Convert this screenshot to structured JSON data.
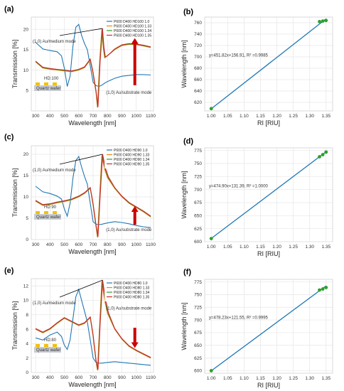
{
  "colors": {
    "series": [
      "#1f77b4",
      "#ff7f0e",
      "#2ca02c",
      "#d62728"
    ],
    "fit_line": "#1f77b4",
    "fit_points": "#2ca02c",
    "arrow": "#cc0000",
    "grid": "#e6e6e6"
  },
  "panels": [
    {
      "label": "(a)",
      "type": "spectra",
      "chart_data": {
        "type": "line",
        "xlabel": "Wavelength [nm]",
        "ylabel": "Transmission [%]",
        "xlim": [
          270,
          1120
        ],
        "ylim": [
          0,
          23
        ],
        "xticks": [
          300,
          400,
          500,
          600,
          700,
          800,
          900,
          1000,
          1100
        ],
        "yticks": [
          5,
          10,
          15,
          20
        ],
        "series": [
          {
            "name": "P600 D400 HD100 1.0",
            "x": [
              300,
              350,
              400,
              450,
              480,
              500,
              520,
              540,
              560,
              580,
              600,
              620,
              640,
              660,
              680,
              700,
              720,
              740,
              760,
              780,
              800,
              850,
              900,
              950,
              1000,
              1050,
              1100
            ],
            "y": [
              16.8,
              15.2,
              14.8,
              14.5,
              13.5,
              10.5,
              6.0,
              8.5,
              16.0,
              20.5,
              21.2,
              18.5,
              16.5,
              15.0,
              11.0,
              7.0,
              6.2,
              6.0,
              6.3,
              6.8,
              7.2,
              8.0,
              8.5,
              8.7,
              8.9,
              8.9,
              8.8
            ]
          },
          {
            "name": "P600 D400 HD100 1.33",
            "x": [
              300,
              350,
              400,
              450,
              500,
              550,
              600,
              640,
              680,
              700,
              720,
              730,
              745,
              760,
              770,
              780,
              800,
              850,
              900,
              950,
              1000,
              1050,
              1100
            ],
            "y": [
              12.0,
              10.5,
              10.2,
              10.0,
              9.8,
              9.6,
              10.0,
              10.6,
              12.5,
              9.0,
              4.5,
              0.8,
              12.0,
              19.8,
              15.5,
              13.0,
              13.5,
              15.0,
              16.0,
              16.3,
              16.2,
              15.9,
              15.5
            ]
          },
          {
            "name": "P600 D400 HD100 1.34",
            "x": [
              300,
              350,
              400,
              450,
              500,
              550,
              600,
              640,
              680,
              700,
              720,
              732,
              747,
              762,
              772,
              782,
              802,
              850,
              900,
              950,
              1000,
              1050,
              1100
            ],
            "y": [
              12.1,
              10.6,
              10.3,
              10.1,
              9.9,
              9.7,
              10.1,
              10.7,
              12.6,
              9.2,
              4.7,
              0.9,
              12.1,
              20.0,
              15.6,
              13.1,
              13.6,
              15.1,
              16.1,
              16.4,
              16.3,
              16.0,
              15.6
            ]
          },
          {
            "name": "P600 D400 HD100 1.35",
            "x": [
              300,
              350,
              400,
              450,
              500,
              550,
              600,
              640,
              680,
              700,
              720,
              734,
              749,
              765,
              775,
              785,
              805,
              850,
              900,
              950,
              1000,
              1050,
              1100
            ],
            "y": [
              12.2,
              10.7,
              10.4,
              10.2,
              10.0,
              9.8,
              10.2,
              10.8,
              12.7,
              9.4,
              4.9,
              1.0,
              12.2,
              20.2,
              15.7,
              13.2,
              13.7,
              15.2,
              16.2,
              16.5,
              16.4,
              16.1,
              15.7
            ]
          }
        ]
      },
      "annotations": {
        "upper": "(1,0) Au/medium mode",
        "lower": "(1,0) Au/substrate mode"
      },
      "inset": {
        "height_label": "HD:100",
        "wafer_label": "Quartz wafer"
      }
    },
    {
      "label": "(b)",
      "type": "fit",
      "chart_data": {
        "type": "scatter",
        "xlabel": "RI [RIU]",
        "ylabel": "Wavelength [nm]",
        "xlim": [
          0.98,
          1.37
        ],
        "ylim": [
          605,
          770
        ],
        "xticks": [
          1.0,
          1.05,
          1.1,
          1.15,
          1.2,
          1.25,
          1.3,
          1.35
        ],
        "yticks": [
          620,
          640,
          660,
          680,
          700,
          720,
          740,
          760
        ],
        "x": [
          1.0,
          1.33,
          1.34,
          1.35
        ],
        "y": [
          609,
          762,
          763,
          764
        ],
        "fit": {
          "slope": 451.82,
          "intercept": 156.91
        }
      },
      "equation": "y=451.82x+156.91, R² =0.9985"
    },
    {
      "label": "(c)",
      "type": "spectra",
      "chart_data": {
        "type": "line",
        "xlabel": "Wavelength [nm]",
        "ylabel": "Transmission [%]",
        "xlim": [
          270,
          1120
        ],
        "ylim": [
          0,
          22
        ],
        "xticks": [
          300,
          400,
          500,
          600,
          700,
          800,
          900,
          1000,
          1100
        ],
        "yticks": [
          0,
          5,
          10,
          15,
          20
        ],
        "series": [
          {
            "name": "P600 D400 HD90 1.0",
            "x": [
              300,
              350,
              400,
              450,
              480,
              500,
              520,
              540,
              560,
              580,
              600,
              620,
              640,
              660,
              680,
              700,
              720,
              740,
              760,
              800,
              850,
              900,
              950,
              1000,
              1050,
              1100
            ],
            "y": [
              12.5,
              11.2,
              10.8,
              10.2,
              9.5,
              7.2,
              5.5,
              8.5,
              14.5,
              18.5,
              19.5,
              17.0,
              14.8,
              13.0,
              8.5,
              4.2,
              3.6,
              3.5,
              3.6,
              3.9,
              4.2,
              4.0,
              3.7,
              3.3,
              3.0,
              2.8
            ]
          },
          {
            "name": "P600 D400 HD90 1.33",
            "x": [
              300,
              350,
              400,
              450,
              500,
              550,
              600,
              640,
              680,
              700,
              720,
              730,
              745,
              760,
              780,
              800,
              850,
              900,
              950,
              1000,
              1050,
              1100
            ],
            "y": [
              9.0,
              8.0,
              8.2,
              8.6,
              8.9,
              9.3,
              10.0,
              10.8,
              12.0,
              8.0,
              3.0,
              0.5,
              10.0,
              19.6,
              16.5,
              14.5,
              12.0,
              10.0,
              8.5,
              7.5,
              6.5,
              5.3
            ]
          },
          {
            "name": "P600 D400 HD90 1.34",
            "x": [
              300,
              350,
              400,
              450,
              500,
              550,
              600,
              640,
              680,
              700,
              720,
              732,
              747,
              763,
              783,
              803,
              850,
              900,
              950,
              1000,
              1050,
              1100
            ],
            "y": [
              9.1,
              8.1,
              8.3,
              8.7,
              9.0,
              9.4,
              10.1,
              10.9,
              12.1,
              8.2,
              3.2,
              0.6,
              10.1,
              19.8,
              16.6,
              14.6,
              12.1,
              10.1,
              8.6,
              7.6,
              6.6,
              5.4
            ]
          },
          {
            "name": "P600 D400 HD90 1.35",
            "x": [
              300,
              350,
              400,
              450,
              500,
              550,
              600,
              640,
              680,
              700,
              720,
              734,
              749,
              766,
              786,
              806,
              850,
              900,
              950,
              1000,
              1050,
              1100
            ],
            "y": [
              9.2,
              8.2,
              8.4,
              8.8,
              9.1,
              9.5,
              10.2,
              11.0,
              12.2,
              8.4,
              3.4,
              0.7,
              10.2,
              20.0,
              16.7,
              14.7,
              12.2,
              10.2,
              8.7,
              7.7,
              6.7,
              5.5
            ]
          }
        ]
      },
      "annotations": {
        "upper": "(1,0) Au/medium mode",
        "lower": "(1,0) Au/substrate mode"
      },
      "inset": {
        "height_label": "HD:90",
        "wafer_label": "Quartz wafer"
      }
    },
    {
      "label": "(d)",
      "type": "fit",
      "chart_data": {
        "type": "scatter",
        "xlabel": "RI [RIU]",
        "ylabel": "Wavelength [nm]",
        "xlim": [
          0.98,
          1.37
        ],
        "ylim": [
          600,
          780
        ],
        "xticks": [
          1.0,
          1.05,
          1.1,
          1.15,
          1.2,
          1.25,
          1.3,
          1.35
        ],
        "yticks": [
          600,
          625,
          650,
          675,
          700,
          725,
          750,
          775
        ],
        "x": [
          1.0,
          1.33,
          1.34,
          1.35
        ],
        "y": [
          606,
          763,
          767,
          772
        ],
        "fit": {
          "slope": 474.9,
          "intercept": 131.39
        }
      },
      "equation": "y=474.90x+131.39, R² =1.0000"
    },
    {
      "label": "(e)",
      "type": "spectra",
      "chart_data": {
        "type": "line",
        "xlabel": "Wavelength [nm]",
        "ylabel": "Transmission [%]",
        "xlim": [
          270,
          1120
        ],
        "ylim": [
          0,
          13
        ],
        "xticks": [
          300,
          400,
          500,
          600,
          700,
          800,
          900,
          1000,
          1100
        ],
        "yticks": [
          0,
          2,
          4,
          6,
          8,
          10,
          12
        ],
        "series": [
          {
            "name": "P600 D400 HD80 1.0",
            "x": [
              300,
              350,
              400,
              450,
              480,
              500,
              520,
              540,
              560,
              580,
              600,
              620,
              640,
              660,
              680,
              700,
              720,
              740,
              760,
              800,
              850,
              900,
              950,
              1000,
              1050,
              1100
            ],
            "y": [
              4.8,
              4.5,
              5.2,
              5.6,
              5.0,
              3.8,
              3.2,
              4.5,
              7.5,
              10.5,
              11.5,
              10.0,
              8.5,
              7.0,
              4.5,
              2.0,
              1.4,
              1.3,
              1.3,
              1.4,
              1.5,
              1.4,
              1.3,
              1.2,
              1.1,
              1.0
            ]
          },
          {
            "name": "P600 D400 HD80 1.33",
            "x": [
              300,
              350,
              400,
              450,
              500,
              550,
              600,
              640,
              680,
              700,
              720,
              730,
              745,
              760,
              780,
              800,
              850,
              900,
              950,
              1000,
              1050,
              1100
            ],
            "y": [
              6.0,
              5.5,
              6.0,
              6.8,
              7.5,
              7.0,
              6.5,
              6.8,
              7.6,
              5.0,
              1.5,
              0.3,
              6.5,
              12.6,
              10.0,
              8.2,
              6.0,
              4.6,
              3.6,
              3.0,
              2.5,
              2.0
            ]
          },
          {
            "name": "P600 D400 HD80 1.34",
            "x": [
              300,
              350,
              400,
              450,
              500,
              550,
              600,
              640,
              680,
              700,
              720,
              732,
              747,
              763,
              783,
              803,
              850,
              900,
              950,
              1000,
              1050,
              1100
            ],
            "y": [
              6.05,
              5.55,
              6.05,
              6.85,
              7.55,
              7.05,
              6.55,
              6.85,
              7.65,
              5.1,
              1.6,
              0.35,
              6.6,
              12.7,
              10.05,
              8.25,
              6.05,
              4.65,
              3.65,
              3.05,
              2.55,
              2.05
            ]
          },
          {
            "name": "P600 D400 HD80 1.35",
            "x": [
              300,
              350,
              400,
              450,
              500,
              550,
              600,
              640,
              680,
              700,
              720,
              734,
              749,
              766,
              786,
              806,
              850,
              900,
              950,
              1000,
              1050,
              1100
            ],
            "y": [
              6.1,
              5.6,
              6.1,
              6.9,
              7.6,
              7.1,
              6.6,
              6.9,
              7.7,
              5.2,
              1.7,
              0.4,
              6.7,
              12.8,
              10.1,
              8.3,
              6.1,
              4.7,
              3.7,
              3.1,
              2.6,
              2.1
            ]
          }
        ]
      },
      "annotations": {
        "upper": "(1,0) Au/medium mode",
        "lower": "(1,0) Au/substrate mode"
      },
      "inset": {
        "height_label": "HD:80",
        "wafer_label": "Quartz wafer"
      }
    },
    {
      "label": "(f)",
      "type": "fit",
      "chart_data": {
        "type": "scatter",
        "xlabel": "RI [RIU]",
        "ylabel": "Wavelength [nm]",
        "xlim": [
          0.98,
          1.37
        ],
        "ylim": [
          595,
          780
        ],
        "xticks": [
          1.0,
          1.05,
          1.1,
          1.15,
          1.2,
          1.25,
          1.3,
          1.35
        ],
        "yticks": [
          600,
          625,
          650,
          675,
          700,
          725,
          750,
          775
        ],
        "x": [
          1.0,
          1.33,
          1.34,
          1.35
        ],
        "y": [
          600,
          759,
          761,
          764
        ],
        "fit": {
          "slope": 478.23,
          "intercept": 121.55
        }
      },
      "equation": "y=478.23x+121.55, R² =0.9995"
    }
  ]
}
